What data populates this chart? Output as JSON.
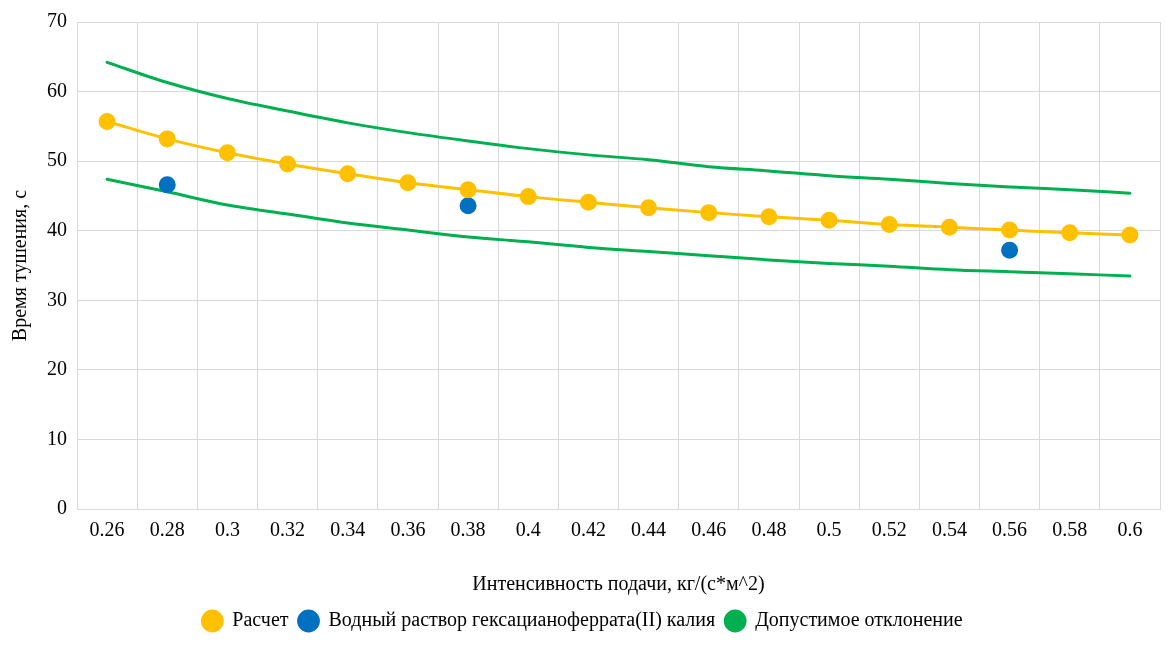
{
  "chart_data": {
    "type": "line",
    "xlabel": "Интенсивность подачи, кг/(с*м^2)",
    "ylabel": "Время тушения, с",
    "categories": [
      "0.26",
      "0.28",
      "0.3",
      "0.32",
      "0.34",
      "0.36",
      "0.38",
      "0.4",
      "0.42",
      "0.44",
      "0.46",
      "0.48",
      "0.5",
      "0.52",
      "0.54",
      "0.56",
      "0.58",
      "0.6"
    ],
    "ylim": [
      0,
      70
    ],
    "yticks": [
      0,
      10,
      20,
      30,
      40,
      50,
      60,
      70
    ],
    "grid": true,
    "legend": "bottom",
    "series": [
      {
        "name": "Расчет",
        "color": "#ffc000",
        "marker": "circle",
        "values": [
          55.7,
          53.2,
          51.2,
          49.6,
          48.2,
          46.9,
          45.9,
          44.9,
          44.1,
          43.3,
          42.6,
          42.0,
          41.5,
          40.9,
          40.5,
          40.1,
          39.7,
          39.4
        ]
      },
      {
        "name": "Водный раствор гексацианоферрата(II) калия",
        "type": "scatter",
        "color": "#0070c0",
        "marker": "circle",
        "x": [
          "0.28",
          "0.38",
          "0.56"
        ],
        "values": [
          46.6,
          43.6,
          37.2
        ]
      },
      {
        "name": "Допустимое отклонение",
        "color": "#00b050",
        "marker": "none",
        "values": [
          64.2,
          61.3,
          59.0,
          57.2,
          55.5,
          54.1,
          52.9,
          51.8,
          50.9,
          50.2,
          49.2,
          48.6,
          47.9,
          47.4,
          46.8,
          46.3,
          45.9,
          45.4
        ]
      },
      {
        "color": "#00b050",
        "marker": "none",
        "values": [
          47.4,
          45.6,
          43.7,
          42.4,
          41.1,
          40.1,
          39.1,
          38.4,
          37.6,
          37.0,
          36.4,
          35.8,
          35.3,
          34.9,
          34.4,
          34.1,
          33.8,
          33.5
        ]
      }
    ]
  }
}
